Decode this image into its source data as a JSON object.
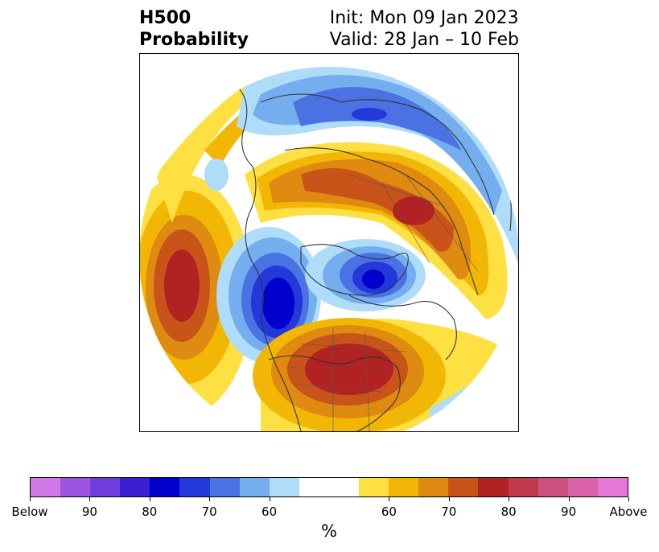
{
  "title": {
    "left_line1": "H500",
    "left_line2": "Probability",
    "right_line1": "Init: Mon 09 Jan 2023",
    "right_line2": "Valid: 28 Jan – 10 Feb"
  },
  "colorbar": {
    "colors": [
      "#d177e8",
      "#9b55e0",
      "#6f3ddb",
      "#3a1fd4",
      "#0000cc",
      "#2338d9",
      "#4a72e3",
      "#74aeef",
      "#aedcf9",
      "#ffffff",
      "#ffe043",
      "#f2b705",
      "#df8a11",
      "#c8541a",
      "#b22222",
      "#c03a4e",
      "#cc5280",
      "#d962a8",
      "#e577d8"
    ],
    "tick_labels": [
      "Below",
      "90",
      "80",
      "70",
      "60",
      "60",
      "70",
      "80",
      "90",
      "Above"
    ],
    "unit_label": "%"
  },
  "map": {
    "projection": "north-polar-stereographic",
    "variable": "500 hPa height anomaly probability",
    "features": [
      {
        "name": "above-normal-eastern-us",
        "category": "above",
        "peak_percent": 80
      },
      {
        "name": "below-normal-western-canada-alaska",
        "category": "below",
        "peak_percent": 80
      },
      {
        "name": "below-normal-greenland",
        "category": "below",
        "peak_percent": 80
      },
      {
        "name": "above-normal-northeast-pacific",
        "category": "above",
        "peak_percent": 80
      },
      {
        "name": "above-normal-northern-eurasia",
        "category": "above",
        "peak_percent": 80
      },
      {
        "name": "below-normal-arctic-siberia",
        "category": "below",
        "peak_percent": 70
      }
    ]
  }
}
